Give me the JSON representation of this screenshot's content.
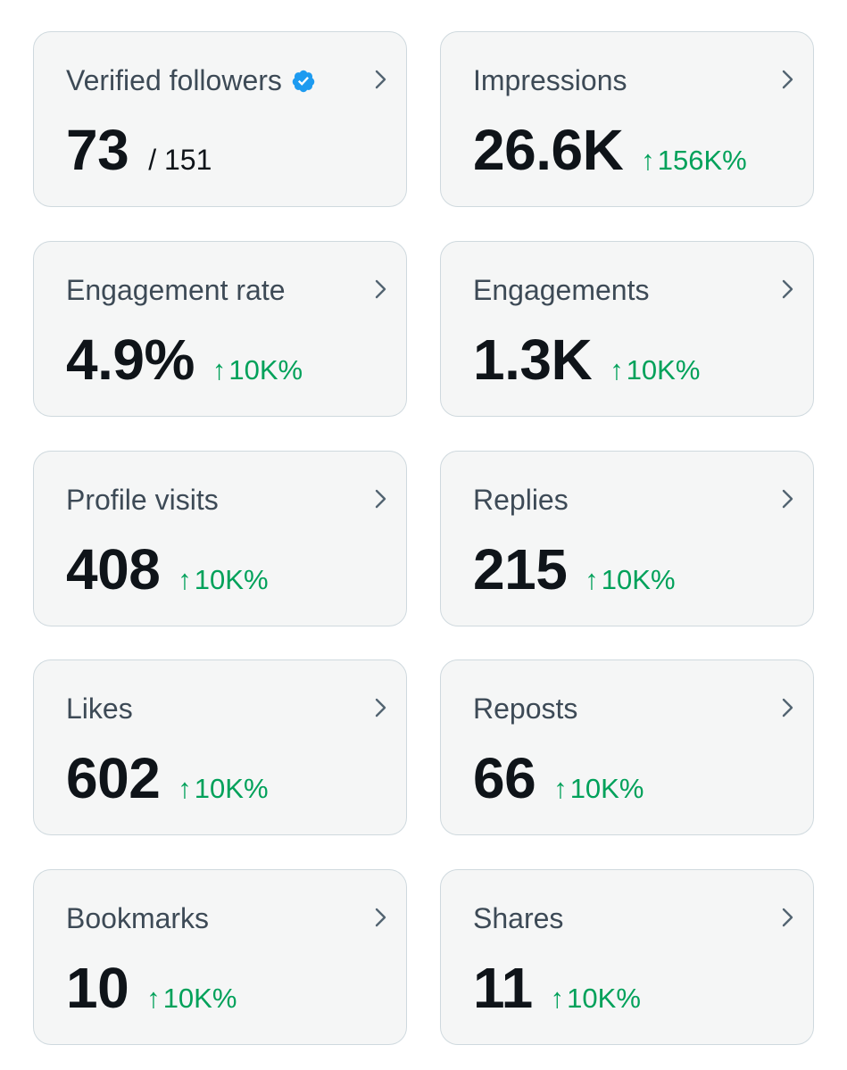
{
  "colors": {
    "card_bg": "#f5f6f6",
    "card_border": "#cfd9de",
    "label": "#3d4a56",
    "value": "#0f1419",
    "positive_change": "#00a15a",
    "verified_badge": "#1d9bf0"
  },
  "cards": {
    "verified_followers": {
      "label": "Verified followers",
      "value": "73",
      "total": "/ 151",
      "badge_icon": "verified-badge-icon"
    },
    "impressions": {
      "label": "Impressions",
      "value": "26.6K",
      "change": "156K%"
    },
    "engagement_rate": {
      "label": "Engagement rate",
      "value": "4.9%",
      "change": "10K%"
    },
    "engagements": {
      "label": "Engagements",
      "value": "1.3K",
      "change": "10K%"
    },
    "profile_visits": {
      "label": "Profile visits",
      "value": "408",
      "change": "10K%"
    },
    "replies": {
      "label": "Replies",
      "value": "215",
      "change": "10K%"
    },
    "likes": {
      "label": "Likes",
      "value": "602",
      "change": "10K%"
    },
    "reposts": {
      "label": "Reposts",
      "value": "66",
      "change": "10K%"
    },
    "bookmarks": {
      "label": "Bookmarks",
      "value": "10",
      "change": "10K%"
    },
    "shares": {
      "label": "Shares",
      "value": "11",
      "change": "10K%"
    }
  },
  "icons": {
    "up_arrow": "↑",
    "chevron": "chevron-right-icon"
  }
}
